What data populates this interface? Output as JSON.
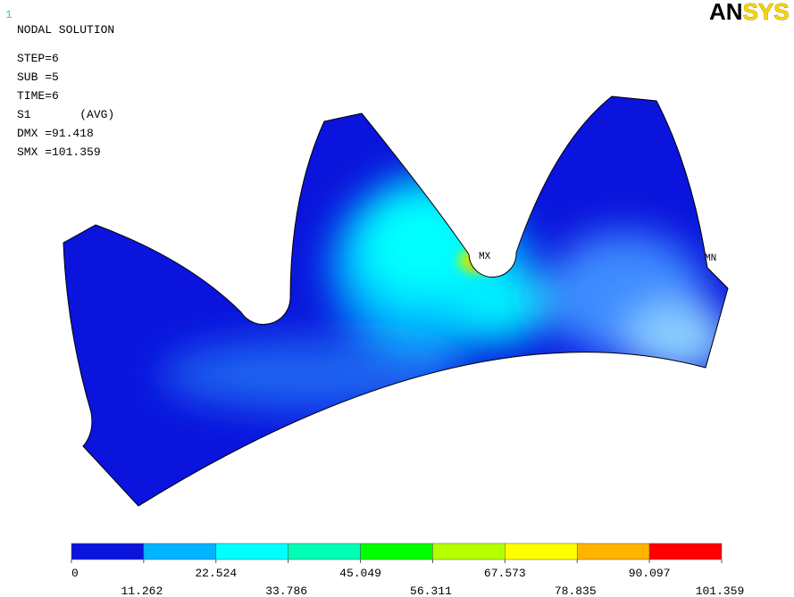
{
  "window_number": "1",
  "logo": {
    "part1": "AN",
    "part2": "SYS"
  },
  "info": [
    "NODAL SOLUTION",
    "STEP=6",
    "SUB =5",
    "TIME=6",
    "S1       (AVG)",
    "DMX =91.418",
    "SMX =101.359"
  ],
  "markers": {
    "max": "MX",
    "min": "MN"
  },
  "legend": {
    "colors": [
      "#0a14dc",
      "#00b4ff",
      "#00ffff",
      "#00ffb4",
      "#00ff00",
      "#b4ff00",
      "#ffff00",
      "#ffb400",
      "#ff0000"
    ],
    "labels": [
      "0",
      "11.262",
      "22.524",
      "33.786",
      "45.049",
      "56.311",
      "67.573",
      "78.835",
      "90.097",
      "101.359"
    ]
  }
}
